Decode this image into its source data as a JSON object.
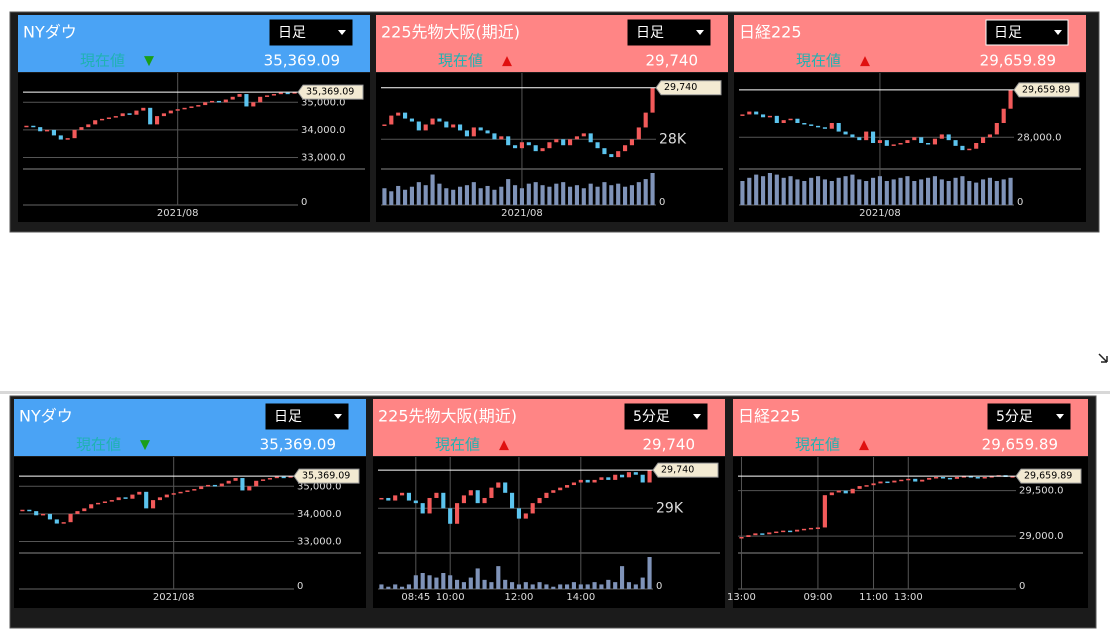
{
  "panels": [
    {
      "title": "NYダウ",
      "period": "日足",
      "label": "現在値",
      "arrow": "▼",
      "direction": "down",
      "price": {
        "value": 35369.09,
        "label": "35,369.09"
      },
      "ylim": [
        32800,
        35700
      ],
      "yticks": [
        {
          "value": 35000,
          "label": "35,000.0"
        },
        {
          "value": 34000,
          "label": "34,000.0"
        },
        {
          "value": 33000,
          "label": "33,000.0"
        }
      ],
      "volume_ticks": [
        0
      ],
      "closes": [
        34150,
        34100,
        33950,
        34000,
        33800,
        33650,
        33700,
        34000,
        34100,
        34200,
        34350,
        34400,
        34450,
        34500,
        34600,
        34550,
        34700,
        34800,
        34200,
        34500,
        34600,
        34700,
        34750,
        34800,
        34850,
        34900,
        35000,
        35050,
        35000,
        35100,
        35200,
        35300,
        34850,
        35000,
        35200,
        35250,
        35300,
        35350,
        35320,
        35369.09
      ],
      "x": [
        null,
        null,
        null,
        null,
        null,
        null,
        null,
        null,
        null,
        null,
        null,
        null,
        null,
        null,
        null,
        null,
        null,
        null,
        null,
        null,
        null,
        null,
        "2021/08",
        null,
        null,
        null,
        null,
        null,
        null,
        null,
        null,
        null,
        null,
        null,
        null,
        null,
        null,
        null,
        null,
        null
      ],
      "volumes": []
    },
    {
      "title": "225先物大阪(期近)",
      "period": "日足",
      "label": "現在値",
      "arrow": "▲",
      "direction": "up",
      "price": {
        "value": 29740,
        "label": "29,740"
      },
      "ylim": [
        27200,
        29900
      ],
      "yticks": [
        {
          "value": 28000,
          "label": "28K"
        }
      ],
      "volume_ticks": [
        0
      ],
      "closes": [
        28500,
        28800,
        28900,
        28700,
        28600,
        28300,
        28500,
        28700,
        28600,
        28400,
        28500,
        28300,
        28100,
        28400,
        28300,
        28200,
        28000,
        28100,
        27800,
        27700,
        27900,
        27800,
        27600,
        27700,
        27900,
        28000,
        27800,
        28000,
        28100,
        28200,
        27900,
        27700,
        27500,
        27400,
        27600,
        27800,
        28000,
        28400,
        28900,
        29740
      ],
      "x": [
        null,
        null,
        null,
        null,
        null,
        null,
        null,
        null,
        null,
        null,
        null,
        null,
        null,
        null,
        null,
        null,
        null,
        null,
        null,
        null,
        "2021/08",
        null,
        null,
        null,
        null,
        null,
        null,
        null,
        null,
        null,
        null,
        null,
        null,
        null,
        null,
        null,
        null,
        null,
        null,
        null
      ],
      "volumes": [
        22,
        18,
        25,
        20,
        24,
        30,
        26,
        40,
        28,
        22,
        20,
        24,
        26,
        30,
        22,
        25,
        20,
        24,
        34,
        26,
        22,
        28,
        30,
        26,
        24,
        28,
        30,
        24,
        26,
        22,
        28,
        24,
        30,
        26,
        28,
        24,
        26,
        30,
        34,
        42
      ]
    },
    {
      "title": "日経225",
      "period": "日足",
      "label": "現在値",
      "arrow": "▲",
      "direction": "up",
      "price": {
        "value": 29659.89,
        "label": "29,659.89"
      },
      "ylim": [
        27100,
        29900
      ],
      "yticks": [
        {
          "value": 28000,
          "label": "28,000.0"
        }
      ],
      "volume_ticks": [
        0
      ],
      "closes": [
        28800,
        28900,
        28800,
        28700,
        28750,
        28500,
        28600,
        28650,
        28500,
        28450,
        28400,
        28350,
        28300,
        28500,
        28200,
        28100,
        28000,
        27900,
        28200,
        27800,
        27900,
        27700,
        27750,
        27800,
        27900,
        28000,
        27800,
        27750,
        27950,
        28100,
        27900,
        27700,
        27550,
        27600,
        27800,
        28000,
        28100,
        28500,
        29000,
        29659.89
      ],
      "x": [
        null,
        null,
        null,
        null,
        null,
        null,
        null,
        null,
        null,
        null,
        null,
        null,
        null,
        null,
        null,
        null,
        null,
        null,
        null,
        null,
        "2021/08",
        null,
        null,
        null,
        null,
        null,
        null,
        null,
        null,
        null,
        null,
        null,
        null,
        null,
        null,
        null,
        null,
        null,
        null,
        null
      ],
      "volumes": [
        30,
        34,
        38,
        36,
        40,
        38,
        34,
        36,
        32,
        30,
        34,
        36,
        32,
        30,
        34,
        36,
        38,
        32,
        30,
        34,
        36,
        30,
        32,
        34,
        36,
        30,
        32,
        34,
        36,
        32,
        30,
        34,
        36,
        30,
        28,
        32,
        34,
        30,
        32,
        34
      ]
    },
    {
      "title": "NYダウ",
      "period": "日足",
      "label": "現在値",
      "arrow": "▼",
      "direction": "down",
      "price": {
        "value": 35369.09,
        "label": "35,369.09"
      },
      "ylim": [
        32800,
        35700
      ],
      "yticks": [
        {
          "value": 35000,
          "label": "35,000.0"
        },
        {
          "value": 34000,
          "label": "34,000.0"
        },
        {
          "value": 33000,
          "label": "33,000.0"
        }
      ],
      "volume_ticks": [
        0
      ],
      "closes": [
        34150,
        34100,
        33950,
        34000,
        33800,
        33650,
        33700,
        34000,
        34100,
        34200,
        34350,
        34400,
        34450,
        34500,
        34600,
        34550,
        34700,
        34800,
        34200,
        34500,
        34600,
        34700,
        34750,
        34800,
        34850,
        34900,
        35000,
        35050,
        35000,
        35100,
        35200,
        35300,
        34850,
        35000,
        35200,
        35250,
        35300,
        35350,
        35320,
        35369.09
      ],
      "x": [
        null,
        null,
        null,
        null,
        null,
        null,
        null,
        null,
        null,
        null,
        null,
        null,
        null,
        null,
        null,
        null,
        null,
        null,
        null,
        null,
        null,
        null,
        "2021/08",
        null,
        null,
        null,
        null,
        null,
        null,
        null,
        null,
        null,
        null,
        null,
        null,
        null,
        null,
        null,
        null,
        null
      ],
      "volumes": []
    },
    {
      "title": "225先物大阪(期近)",
      "period": "5分足",
      "label": "現在値",
      "arrow": "▲",
      "direction": "up",
      "price": {
        "value": 29740,
        "label": "29,740"
      },
      "ylim": [
        28250,
        29800
      ],
      "yticks": [
        {
          "value": 29000,
          "label": "29K"
        }
      ],
      "volume_ticks": [
        0
      ],
      "closes": [
        29200,
        29150,
        29250,
        29300,
        29150,
        29100,
        28900,
        29200,
        29300,
        29000,
        28700,
        29100,
        29250,
        29350,
        29100,
        29200,
        29400,
        29500,
        29300,
        29000,
        28800,
        28900,
        29100,
        29200,
        29300,
        29350,
        29400,
        29450,
        29500,
        29550,
        29500,
        29550,
        29600,
        29550,
        29650,
        29600,
        29700,
        29650,
        29500,
        29740
      ],
      "x": [
        null,
        null,
        null,
        null,
        null,
        "08:45",
        null,
        null,
        null,
        null,
        "10:00",
        null,
        null,
        null,
        null,
        null,
        null,
        null,
        null,
        null,
        "12:00",
        null,
        null,
        null,
        null,
        null,
        null,
        null,
        null,
        "14:00",
        null,
        null,
        null,
        null,
        null,
        null,
        null,
        null,
        null,
        null
      ],
      "volumes": [
        2,
        1,
        2,
        1,
        2,
        6,
        7,
        6,
        5,
        7,
        6,
        4,
        3,
        5,
        9,
        4,
        3,
        10,
        4,
        3,
        2,
        3,
        2,
        3,
        2,
        1,
        2,
        2,
        3,
        2,
        2,
        3,
        2,
        4,
        3,
        10,
        3,
        2,
        5,
        14
      ]
    },
    {
      "title": "日経225",
      "period": "5分足",
      "label": "現在値",
      "arrow": "▲",
      "direction": "up",
      "price": {
        "value": 29659.89,
        "label": "29,659.89"
      },
      "ylim": [
        28880,
        29760
      ],
      "yticks": [
        {
          "value": 29500,
          "label": "29,500.0"
        },
        {
          "value": 29000,
          "label": "29,000.0"
        }
      ],
      "volume_ticks": [
        0
      ],
      "closes": [
        28990,
        29010,
        29030,
        29020,
        29040,
        29050,
        29060,
        29050,
        29070,
        29080,
        29090,
        29095,
        29450,
        29480,
        29500,
        29470,
        29520,
        29550,
        29560,
        29580,
        29600,
        29590,
        29610,
        29620,
        29630,
        29600,
        29620,
        29640,
        29650,
        29640,
        29630,
        29650,
        29660,
        29650,
        29640,
        29650,
        29660,
        29670,
        29650,
        29659.89
      ],
      "x": [
        "13:00",
        null,
        null,
        null,
        null,
        null,
        null,
        null,
        null,
        null,
        null,
        "09:00",
        null,
        null,
        null,
        null,
        null,
        null,
        null,
        "11:00",
        null,
        null,
        null,
        null,
        "13:00",
        null,
        null,
        null,
        null,
        null,
        null,
        null,
        null,
        null,
        null,
        null,
        null,
        null,
        null,
        null
      ],
      "volumes": []
    }
  ]
}
